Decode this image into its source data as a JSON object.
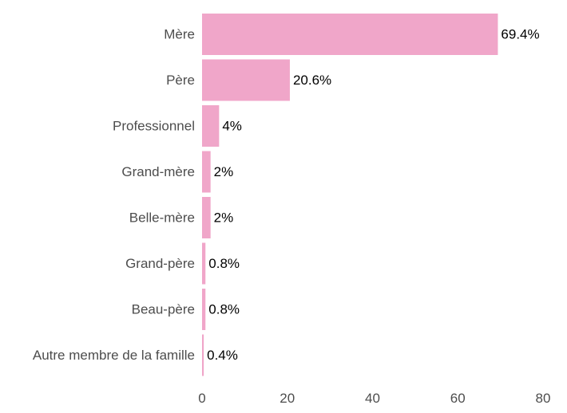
{
  "chart_data": {
    "type": "bar",
    "orientation": "horizontal",
    "categories": [
      "Mère",
      "Père",
      "Professionnel",
      "Grand-mère",
      "Belle-mère",
      "Grand-père",
      "Beau-père",
      "Autre membre de la famille"
    ],
    "values": [
      69.4,
      20.6,
      4,
      2,
      2,
      0.8,
      0.8,
      0.4
    ],
    "value_labels": [
      "69.4%",
      "20.6%",
      "4%",
      "2%",
      "2%",
      "0.8%",
      "0.8%",
      "0.4%"
    ],
    "x_ticks": [
      0,
      20,
      40,
      60,
      80
    ],
    "x_tick_labels": [
      "0",
      "20",
      "40",
      "60",
      "80"
    ],
    "xlim": [
      0,
      80
    ],
    "title": "",
    "xlabel": "",
    "ylabel": "",
    "grid": false,
    "colors": {
      "bar": "#f0a6c9",
      "category_text": "#4d4d4d",
      "value_text": "#000000"
    }
  }
}
